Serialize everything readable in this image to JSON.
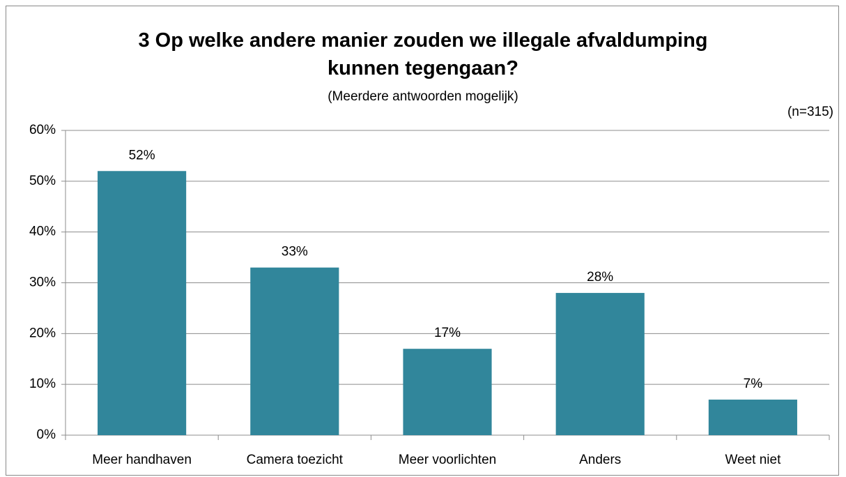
{
  "chart_data": {
    "type": "bar",
    "title": "3 Op welke andere manier zouden we illegale afvaldumping kunnen tegengaan?",
    "subtitle": "(Meerdere antwoorden mogelijk)",
    "annotation": "(n=315)",
    "categories": [
      "Meer handhaven",
      "Camera toezicht",
      "Meer voorlichten",
      "Anders",
      "Weet niet"
    ],
    "values": [
      52,
      33,
      17,
      28,
      7
    ],
    "value_labels": [
      "52%",
      "33%",
      "17%",
      "28%",
      "7%"
    ],
    "color": "#31869b",
    "ylim": [
      0,
      60
    ],
    "yticks": [
      {
        "value": 0,
        "label": "0%"
      },
      {
        "value": 10,
        "label": "10%"
      },
      {
        "value": 20,
        "label": "20%"
      },
      {
        "value": 30,
        "label": "30%"
      },
      {
        "value": 40,
        "label": "40%"
      },
      {
        "value": 50,
        "label": "50%"
      },
      {
        "value": 60,
        "label": "60%"
      }
    ],
    "grid": true
  }
}
